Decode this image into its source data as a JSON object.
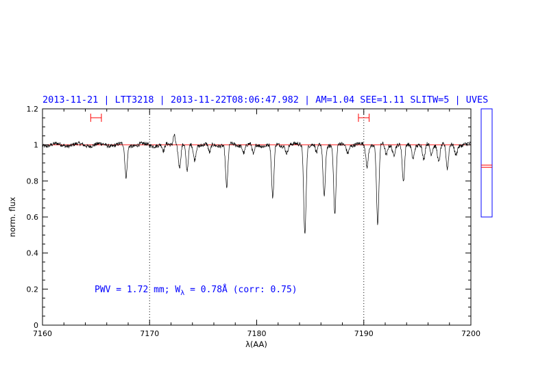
{
  "chart_data": {
    "type": "line",
    "title": "2013-11-21 | LTT3218 | 2013-11-22T08:06:47.982 | AM=1.04  SEE=1.11  SLITW=5 | UVES",
    "xlabel": "λ(AA)",
    "ylabel": "norm. flux",
    "xlim": [
      7160,
      7200
    ],
    "ylim": [
      0,
      1.2
    ],
    "x_ticks": [
      7160,
      7170,
      7180,
      7190,
      7200
    ],
    "x_tick_labels": [
      "7160",
      "7170",
      "7180",
      "7190",
      "7200"
    ],
    "y_ticks": [
      0,
      0.2,
      0.4,
      0.6,
      0.8,
      1,
      1.2
    ],
    "y_tick_labels": [
      "0",
      "0.2",
      "0.4",
      "0.6",
      "0.8",
      "1",
      "1.2"
    ],
    "vlines": [
      7170,
      7190
    ],
    "continuum_level": 1.0,
    "continuum_intervals": [
      [
        7164.5,
        7165.5
      ],
      [
        7189.5,
        7190.5
      ]
    ],
    "annotation": {
      "prefix": "PWV = 1.72 mm; W",
      "subscript": "λ",
      "suffix": " = 0.78Å (corr: 0.75)"
    },
    "absorption_lines": [
      {
        "x": 7167.8,
        "depth": 0.18
      },
      {
        "x": 7171.3,
        "depth": 0.04
      },
      {
        "x": 7172.8,
        "depth": 0.12
      },
      {
        "x": 7173.5,
        "depth": 0.15
      },
      {
        "x": 7174.2,
        "depth": 0.08
      },
      {
        "x": 7175.6,
        "depth": 0.05
      },
      {
        "x": 7177.2,
        "depth": 0.24
      },
      {
        "x": 7178.8,
        "depth": 0.04
      },
      {
        "x": 7179.7,
        "depth": 0.06
      },
      {
        "x": 7181.5,
        "depth": 0.3
      },
      {
        "x": 7182.8,
        "depth": 0.04
      },
      {
        "x": 7184.5,
        "depth": 0.49
      },
      {
        "x": 7185.6,
        "depth": 0.05
      },
      {
        "x": 7186.3,
        "depth": 0.28
      },
      {
        "x": 7187.3,
        "depth": 0.39
      },
      {
        "x": 7188.5,
        "depth": 0.04
      },
      {
        "x": 7190.3,
        "depth": 0.12
      },
      {
        "x": 7191.3,
        "depth": 0.44
      },
      {
        "x": 7192.1,
        "depth": 0.06
      },
      {
        "x": 7192.8,
        "depth": 0.05
      },
      {
        "x": 7193.7,
        "depth": 0.21
      },
      {
        "x": 7194.6,
        "depth": 0.07
      },
      {
        "x": 7195.6,
        "depth": 0.09
      },
      {
        "x": 7196.3,
        "depth": 0.05
      },
      {
        "x": 7197.0,
        "depth": 0.09
      },
      {
        "x": 7197.8,
        "depth": 0.14
      },
      {
        "x": 7198.6,
        "depth": 0.05
      }
    ],
    "emission_features": [
      {
        "x": 7172.3,
        "height": 0.06
      }
    ],
    "side_panel": {
      "ylim": [
        0,
        1
      ],
      "marker_values": [
        0.73,
        0.74
      ],
      "range": [
        0.5,
        1.0
      ]
    },
    "colors": {
      "title": "#0000ff",
      "annotation": "#0000ff",
      "spectrum": "#000000",
      "continuum": "#ff0000",
      "interval_markers": "#ff0000",
      "side_panel_frame": "#0000ff",
      "side_panel_marker": "#ff0000"
    }
  }
}
